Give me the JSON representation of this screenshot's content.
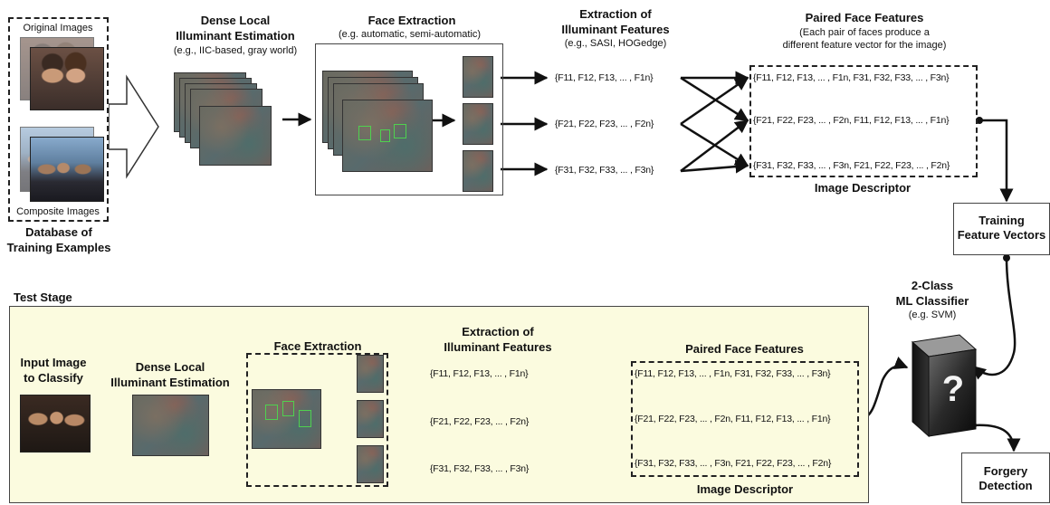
{
  "training": {
    "original_images": "Original Images",
    "composite_images": "Composite Images",
    "database_label_1": "Database of",
    "database_label_2": "Training Examples",
    "dense_title_1": "Dense Local",
    "dense_title_2": "Illuminant Estimation",
    "dense_sub": "(e.g., IIC-based, gray world)",
    "face_title": "Face Extraction",
    "face_sub": "(e.g.  automatic, semi-automatic)",
    "illum_title_1": "Extraction of",
    "illum_title_2": "Illuminant Features",
    "illum_sub": "(e.g., SASI, HOGedge)",
    "features": [
      "{F11, F12, F13, ... , F1n}",
      "{F21, F22, F23, ... , F2n}",
      "{F31, F32, F33, ... , F3n}"
    ],
    "paired_title": "Paired Face Features",
    "paired_sub_1": "(Each pair of faces produce a",
    "paired_sub_2": "different feature vector for the image)",
    "paired": [
      "{F11, F12, F13, ... , F1n, F31, F32, F33, ... , F3n}",
      "{F21, F22, F23, ... , F2n, F11, F12, F13, ... , F1n}",
      "{F31, F32, F33, ... , F3n, F21, F22, F23, ... , F2n}"
    ],
    "image_descriptor": "Image Descriptor",
    "training_vec_1": "Training",
    "training_vec_2": "Feature Vectors"
  },
  "classifier": {
    "title_1": "2-Class",
    "title_2": "ML Classifier",
    "title_3": "(e.g. SVM)",
    "symbol": "?",
    "forgery_1": "Forgery",
    "forgery_2": "Detection"
  },
  "test": {
    "stage_label": "Test Stage",
    "input_1": "Input Image",
    "input_2": "to Classify",
    "dense_1": "Dense Local",
    "dense_2": "Illuminant Estimation",
    "face_title": "Face Extraction",
    "illum_title_1": "Extraction of",
    "illum_title_2": "Illuminant Features",
    "features": [
      "{F11, F12, F13, ... , F1n}",
      "{F21, F22, F23, ... , F2n}",
      "{F31, F32, F33, ... , F3n}"
    ],
    "paired_title": "Paired Face Features",
    "paired": [
      "{F11, F12, F13, ... , F1n, F31, F32, F33, ... , F3n}",
      "{F21, F22, F23, ... , F2n, F11, F12, F13, ... , F1n}",
      "{F31, F32, F33, ... , F3n, F21, F22, F23, ... , F2n}"
    ],
    "image_descriptor": "Image Descriptor"
  },
  "colors": {
    "test_stage_bg": "#fbfbdf",
    "face_box": "#4fd14f"
  }
}
